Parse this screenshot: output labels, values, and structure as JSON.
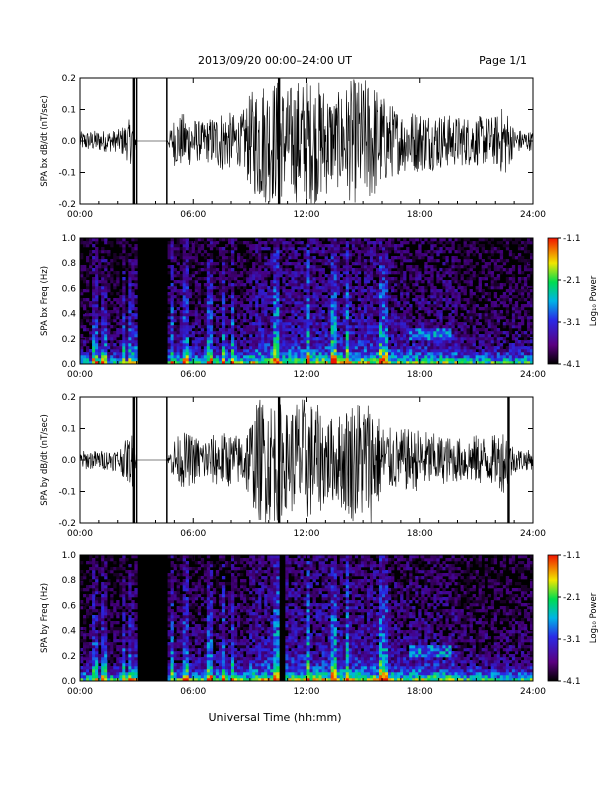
{
  "header": {
    "title": "2013/09/20  00:00–24:00 UT",
    "page": "Page 1/1"
  },
  "xlabel": "Universal Time (hh:mm)",
  "chart_data": [
    {
      "type": "line",
      "panel": "bx-waveform",
      "ylabel": "SPA bx dB/dt (nT/sec)",
      "xlim": [
        0,
        24
      ],
      "ylim": [
        -0.2,
        0.2
      ],
      "xticks": [
        "00:00",
        "06:00",
        "12:00",
        "18:00",
        "24:00"
      ],
      "yticks": [
        "-0.2",
        "-0.1",
        "0.0",
        "0.1",
        "0.2"
      ],
      "gaps_hours": [
        [
          3.0,
          4.6
        ]
      ],
      "spikes_hours": [
        2.85,
        10.55
      ],
      "envelope": {
        "x": [
          0,
          1,
          2,
          2.8,
          3.0,
          4.6,
          5.0,
          5.5,
          6.5,
          7.5,
          8.5,
          9.0,
          9.5,
          10.0,
          10.5,
          11.0,
          11.5,
          12.0,
          12.5,
          13.0,
          13.5,
          14.0,
          14.5,
          15.0,
          15.5,
          16.0,
          16.5,
          17.0,
          18.0,
          19.0,
          20.0,
          21.0,
          22.0,
          22.5,
          23.0,
          24.0
        ],
        "amplitude": [
          0.03,
          0.035,
          0.035,
          0.08,
          0.0,
          0.0,
          0.08,
          0.09,
          0.06,
          0.1,
          0.08,
          0.15,
          0.2,
          0.2,
          0.2,
          0.17,
          0.2,
          0.2,
          0.2,
          0.18,
          0.14,
          0.18,
          0.2,
          0.2,
          0.2,
          0.15,
          0.12,
          0.1,
          0.1,
          0.09,
          0.08,
          0.08,
          0.08,
          0.12,
          0.04,
          0.03
        ]
      }
    },
    {
      "type": "heatmap",
      "panel": "bx-spectrogram",
      "ylabel": "SPA bx Freq (Hz)",
      "xlim": [
        0,
        24
      ],
      "ylim": [
        0,
        1
      ],
      "xticks": [
        "00:00",
        "06:00",
        "12:00",
        "18:00",
        "24:00"
      ],
      "yticks": [
        "0.0",
        "0.2",
        "0.4",
        "0.6",
        "0.8",
        "1.0"
      ],
      "gaps_hours": [
        [
          3.0,
          4.6
        ]
      ],
      "colorbar": {
        "label": "Log₁₀ Power",
        "min": -4.1,
        "max": -1.1,
        "ticks": [
          "-1.1",
          "-2.1",
          "-3.1",
          "-4.1"
        ]
      }
    },
    {
      "type": "line",
      "panel": "by-waveform",
      "ylabel": "SPA by dB/dt (nT/sec)",
      "xlim": [
        0,
        24
      ],
      "ylim": [
        -0.2,
        0.2
      ],
      "xticks": [
        "00:00",
        "06:00",
        "12:00",
        "18:00",
        "24:00"
      ],
      "yticks": [
        "-0.2",
        "-0.1",
        "0.0",
        "0.1",
        "0.2"
      ],
      "gaps_hours": [
        [
          3.0,
          4.6
        ]
      ],
      "spikes_hours": [
        2.85,
        10.55,
        22.7
      ],
      "envelope": {
        "x": [
          0,
          1,
          2,
          2.8,
          3.0,
          4.6,
          5.0,
          5.5,
          6.5,
          7.5,
          8.5,
          9.0,
          9.5,
          10.0,
          10.5,
          11.0,
          11.5,
          12.0,
          12.5,
          13.0,
          13.5,
          14.0,
          14.5,
          15.0,
          15.5,
          16.0,
          16.5,
          17.0,
          18.0,
          19.0,
          20.0,
          21.0,
          22.0,
          22.5,
          23.0,
          24.0
        ],
        "amplitude": [
          0.03,
          0.03,
          0.035,
          0.09,
          0.0,
          0.0,
          0.07,
          0.09,
          0.07,
          0.09,
          0.08,
          0.13,
          0.2,
          0.2,
          0.2,
          0.15,
          0.2,
          0.2,
          0.18,
          0.15,
          0.13,
          0.17,
          0.2,
          0.2,
          0.2,
          0.12,
          0.1,
          0.1,
          0.1,
          0.08,
          0.07,
          0.08,
          0.08,
          0.11,
          0.04,
          0.03
        ]
      }
    },
    {
      "type": "heatmap",
      "panel": "by-spectrogram",
      "ylabel": "SPA by Freq (Hz)",
      "xlim": [
        0,
        24
      ],
      "ylim": [
        0,
        1
      ],
      "xticks": [
        "00:00",
        "06:00",
        "12:00",
        "18:00",
        "24:00"
      ],
      "yticks": [
        "0.0",
        "0.2",
        "0.4",
        "0.6",
        "0.8",
        "1.0"
      ],
      "gaps_hours": [
        [
          3.0,
          4.6
        ],
        [
          10.5,
          10.8
        ]
      ],
      "colorbar": {
        "label": "Log₁₀ Power",
        "min": -4.1,
        "max": -1.1,
        "ticks": [
          "-1.1",
          "-2.1",
          "-3.1",
          "-4.1"
        ]
      }
    }
  ]
}
